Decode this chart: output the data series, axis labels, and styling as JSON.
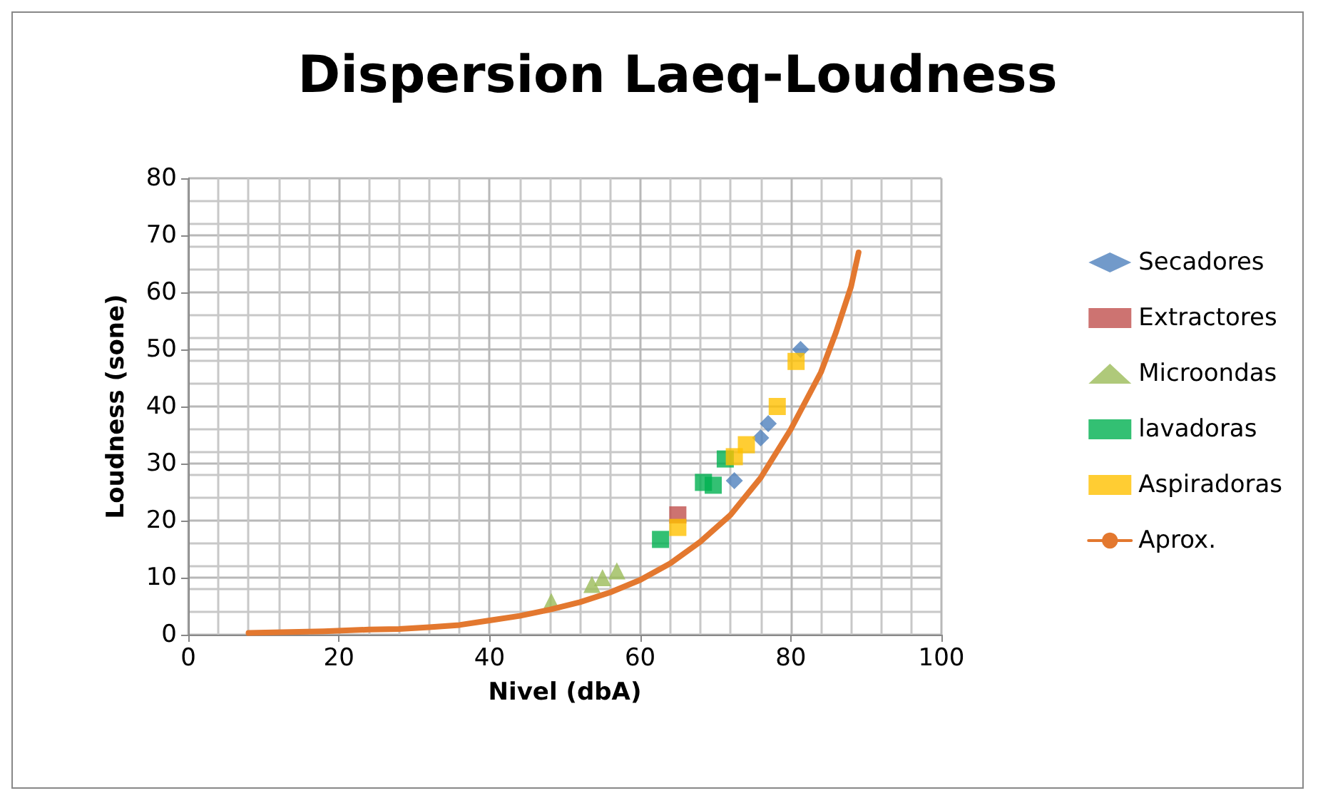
{
  "chart_data": {
    "type": "scatter",
    "title": "Dispersion Laeq-Loudness",
    "xlabel": "Nivel (dbA)",
    "ylabel": "Loudness (sone)",
    "xlim": [
      0,
      100
    ],
    "xticks": [
      0,
      20,
      40,
      60,
      80,
      100
    ],
    "ylim": [
      0,
      80
    ],
    "yticks": [
      0,
      10,
      20,
      30,
      40,
      50,
      60,
      70,
      80
    ],
    "grid": true,
    "legend": "right",
    "series": [
      {
        "name": "Secadores",
        "color": "#4f81bd",
        "marker": "diamond",
        "x": [
          81.3,
          77,
          76,
          72.5
        ],
        "values": [
          50,
          37,
          34.5,
          27
        ]
      },
      {
        "name": "Extractores",
        "color": "#c0504d",
        "marker": "square",
        "x": [
          65
        ],
        "values": [
          21
        ]
      },
      {
        "name": "Microondas",
        "color": "#9bbb59",
        "marker": "triangle",
        "x": [
          56.9,
          55,
          53.6,
          48.2
        ],
        "values": [
          11.2,
          10,
          8.8,
          5.8
        ]
      },
      {
        "name": "lavadoras",
        "color": "#00b050",
        "marker": "square",
        "x": [
          62.7,
          68.4,
          69.7,
          71.3
        ],
        "values": [
          16.7,
          26.7,
          26.2,
          30.8
        ]
      },
      {
        "name": "Aspiradoras",
        "color": "#ffc000",
        "marker": "square",
        "x": [
          65,
          72.5,
          74.1,
          78.2,
          80.7
        ],
        "values": [
          18.8,
          31.2,
          33.3,
          40,
          47.9
        ]
      },
      {
        "name": "Aprox.",
        "type": "line",
        "color": "#e3782f",
        "marker": "none",
        "x": [
          8,
          18,
          24,
          28,
          32,
          36,
          40,
          44,
          48,
          52,
          56,
          60,
          64,
          68,
          72,
          76,
          80,
          84,
          86,
          88,
          89
        ],
        "values": [
          0.3,
          0.6,
          0.9,
          1,
          1.3,
          1.7,
          2.5,
          3.3,
          4.4,
          5.7,
          7.4,
          9.6,
          12.5,
          16.3,
          21,
          27.5,
          36,
          46,
          53,
          61,
          67
        ]
      }
    ]
  }
}
